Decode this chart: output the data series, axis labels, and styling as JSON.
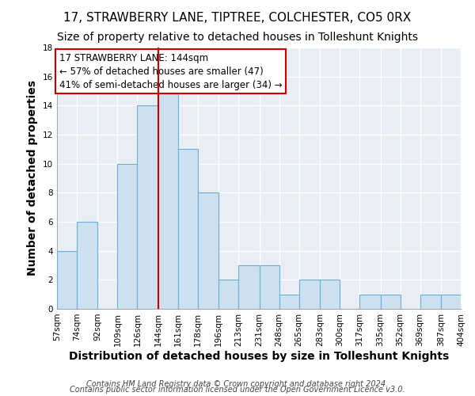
{
  "title": "17, STRAWBERRY LANE, TIPTREE, COLCHESTER, CO5 0RX",
  "subtitle": "Size of property relative to detached houses in Tolleshunt Knights",
  "xlabel": "Distribution of detached houses by size in Tolleshunt Knights",
  "ylabel": "Number of detached properties",
  "bin_edges": [
    57,
    74,
    92,
    109,
    126,
    144,
    161,
    178,
    196,
    213,
    231,
    248,
    265,
    283,
    300,
    317,
    335,
    352,
    369,
    387,
    404
  ],
  "counts": [
    4,
    6,
    0,
    10,
    14,
    15,
    11,
    8,
    2,
    3,
    3,
    1,
    2,
    2,
    0,
    1,
    1,
    0,
    1,
    1
  ],
  "bar_color": "#cde0f0",
  "bar_edge_color": "#6aaed6",
  "vline_x": 144,
  "vline_color": "#cc0000",
  "ylim": [
    0,
    18
  ],
  "yticks": [
    0,
    2,
    4,
    6,
    8,
    10,
    12,
    14,
    16,
    18
  ],
  "annotation_title": "17 STRAWBERRY LANE: 144sqm",
  "annotation_line1": "← 57% of detached houses are smaller (47)",
  "annotation_line2": "41% of semi-detached houses are larger (34) →",
  "annotation_box_color": "#ffffff",
  "annotation_box_edge_color": "#cc0000",
  "footnote1": "Contains HM Land Registry data © Crown copyright and database right 2024.",
  "footnote2": "Contains public sector information licensed under the Open Government Licence v3.0.",
  "tick_labels": [
    "57sqm",
    "74sqm",
    "92sqm",
    "109sqm",
    "126sqm",
    "144sqm",
    "161sqm",
    "178sqm",
    "196sqm",
    "213sqm",
    "231sqm",
    "248sqm",
    "265sqm",
    "283sqm",
    "300sqm",
    "317sqm",
    "335sqm",
    "352sqm",
    "369sqm",
    "387sqm",
    "404sqm"
  ],
  "background_color": "#ffffff",
  "plot_bg_color": "#e8eef4",
  "grid_color": "#ffffff",
  "title_fontsize": 11,
  "subtitle_fontsize": 10,
  "axis_label_fontsize": 10,
  "tick_fontsize": 7.5,
  "annotation_fontsize": 8.5,
  "footnote_fontsize": 7
}
